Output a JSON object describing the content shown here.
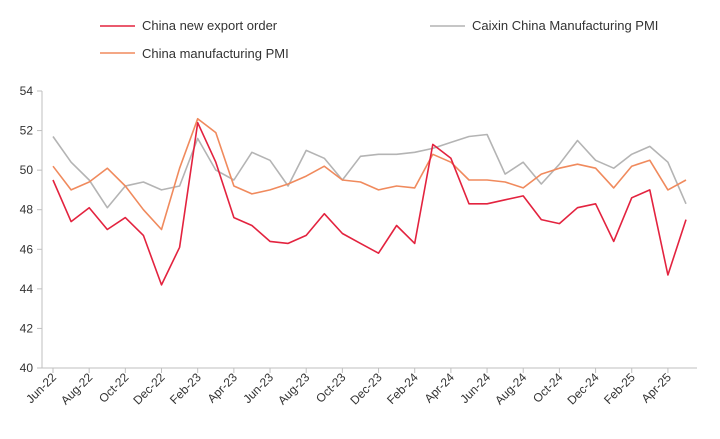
{
  "chart_data": {
    "type": "line",
    "title": "",
    "xlabel": "",
    "ylabel": "",
    "ylim": [
      40,
      54
    ],
    "yticks": [
      40,
      42,
      44,
      46,
      48,
      50,
      52,
      54
    ],
    "grid": false,
    "legend_placement": "top",
    "x": [
      "Jun-22",
      "Jul-22",
      "Aug-22",
      "Sep-22",
      "Oct-22",
      "Nov-22",
      "Dec-22",
      "Jan-23",
      "Feb-23",
      "Mar-23",
      "Apr-23",
      "May-23",
      "Jun-23",
      "Jul-23",
      "Aug-23",
      "Sep-23",
      "Oct-23",
      "Nov-23",
      "Dec-23",
      "Jan-24",
      "Feb-24",
      "Mar-24",
      "Apr-24",
      "May-24",
      "Jun-24",
      "Jul-24",
      "Aug-24",
      "Sep-24",
      "Oct-24",
      "Nov-24",
      "Dec-24",
      "Jan-25",
      "Feb-25",
      "Mar-25",
      "Apr-25",
      "May-25"
    ],
    "x_tick_labels": [
      "Jun-22",
      "Aug-22",
      "Oct-22",
      "Dec-22",
      "Feb-23",
      "Apr-23",
      "Jun-23",
      "Aug-23",
      "Oct-23",
      "Dec-23",
      "Feb-24",
      "Apr-24",
      "Jun-24",
      "Aug-24",
      "Oct-24",
      "Dec-24",
      "Feb-25",
      "Apr-25"
    ],
    "series": [
      {
        "name": "China new export order",
        "color": "#e3233f",
        "values": [
          49.5,
          47.4,
          48.1,
          47.0,
          47.6,
          46.7,
          44.2,
          46.1,
          52.4,
          50.4,
          47.6,
          47.2,
          46.4,
          46.3,
          46.7,
          47.8,
          46.8,
          46.3,
          45.8,
          47.2,
          46.3,
          51.3,
          50.6,
          48.3,
          48.3,
          48.5,
          48.7,
          47.5,
          47.3,
          48.1,
          48.3,
          46.4,
          48.6,
          49.0,
          44.7,
          47.5
        ]
      },
      {
        "name": "Caixin China Manufacturing PMI",
        "color": "#b4b4b4",
        "values": [
          51.7,
          50.4,
          49.5,
          48.1,
          49.2,
          49.4,
          49.0,
          49.2,
          51.6,
          50.0,
          49.5,
          50.9,
          50.5,
          49.2,
          51.0,
          50.6,
          49.5,
          50.7,
          50.8,
          50.8,
          50.9,
          51.1,
          51.4,
          51.7,
          51.8,
          49.8,
          50.4,
          49.3,
          50.3,
          51.5,
          50.5,
          50.1,
          50.8,
          51.2,
          50.4,
          48.3
        ]
      },
      {
        "name": "China manufacturing PMI",
        "color": "#f08a5d",
        "values": [
          50.2,
          49.0,
          49.4,
          50.1,
          49.2,
          48.0,
          47.0,
          50.1,
          52.6,
          51.9,
          49.2,
          48.8,
          49.0,
          49.3,
          49.7,
          50.2,
          49.5,
          49.4,
          49.0,
          49.2,
          49.1,
          50.8,
          50.4,
          49.5,
          49.5,
          49.4,
          49.1,
          49.8,
          50.1,
          50.3,
          50.1,
          49.1,
          50.2,
          50.5,
          49.0,
          49.5
        ]
      }
    ]
  }
}
